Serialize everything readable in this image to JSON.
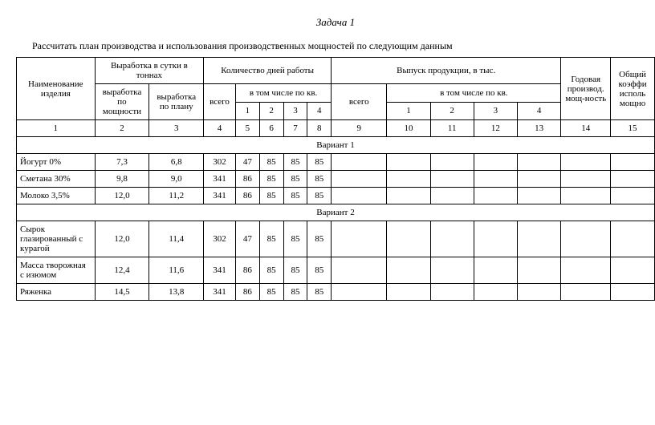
{
  "title": "Задача 1",
  "subtitle": "Рассчитать план производства и использования производственных мощностей по следующим данным",
  "headers": {
    "name": "Наименование изделия",
    "vyrabotka_group": "Выработка в сутки в тоннах",
    "vyrabotka_po_moshnosti": "выработка по мощности",
    "vyrabotka_po_planu": "выработка по плану",
    "days_group": "Количество дней работы",
    "vsego": "всего",
    "v_tom_chisle": "в том числе по кв.",
    "output_group": "Выпуск продукции, в тыс.",
    "godovaya": "Годовая производ. мощ-ность",
    "coef": "Общий коэффи исполь мощно",
    "q1": "1",
    "q2": "2",
    "q3": "3",
    "q4": "4"
  },
  "colnums": [
    "1",
    "2",
    "3",
    "4",
    "5",
    "6",
    "7",
    "8",
    "9",
    "10",
    "11",
    "12",
    "13",
    "14",
    "15"
  ],
  "sections": [
    {
      "label": "Вариант 1",
      "rows": [
        {
          "name": "Йогурт 0%",
          "v_m": "7,3",
          "v_p": "6,8",
          "d_all": "302",
          "d1": "47",
          "d2": "85",
          "d3": "85",
          "d4": "85"
        },
        {
          "name": "Сметана 30%",
          "v_m": "9,8",
          "v_p": "9,0",
          "d_all": "341",
          "d1": "86",
          "d2": "85",
          "d3": "85",
          "d4": "85"
        },
        {
          "name": "Молоко 3,5%",
          "v_m": "12,0",
          "v_p": "11,2",
          "d_all": "341",
          "d1": "86",
          "d2": "85",
          "d3": "85",
          "d4": "85"
        }
      ]
    },
    {
      "label": "Вариант 2",
      "rows": [
        {
          "name": "Сырок глазированный с курагой",
          "v_m": "12,0",
          "v_p": "11,4",
          "d_all": "302",
          "d1": "47",
          "d2": "85",
          "d3": "85",
          "d4": "85"
        },
        {
          "name": "Масса творожная с изюмом",
          "v_m": "12,4",
          "v_p": "11,6",
          "d_all": "341",
          "d1": "86",
          "d2": "85",
          "d3": "85",
          "d4": "85"
        },
        {
          "name": "Ряженка",
          "v_m": "14,5",
          "v_p": "13,8",
          "d_all": "341",
          "d1": "86",
          "d2": "85",
          "d3": "85",
          "d4": "85"
        }
      ]
    }
  ]
}
